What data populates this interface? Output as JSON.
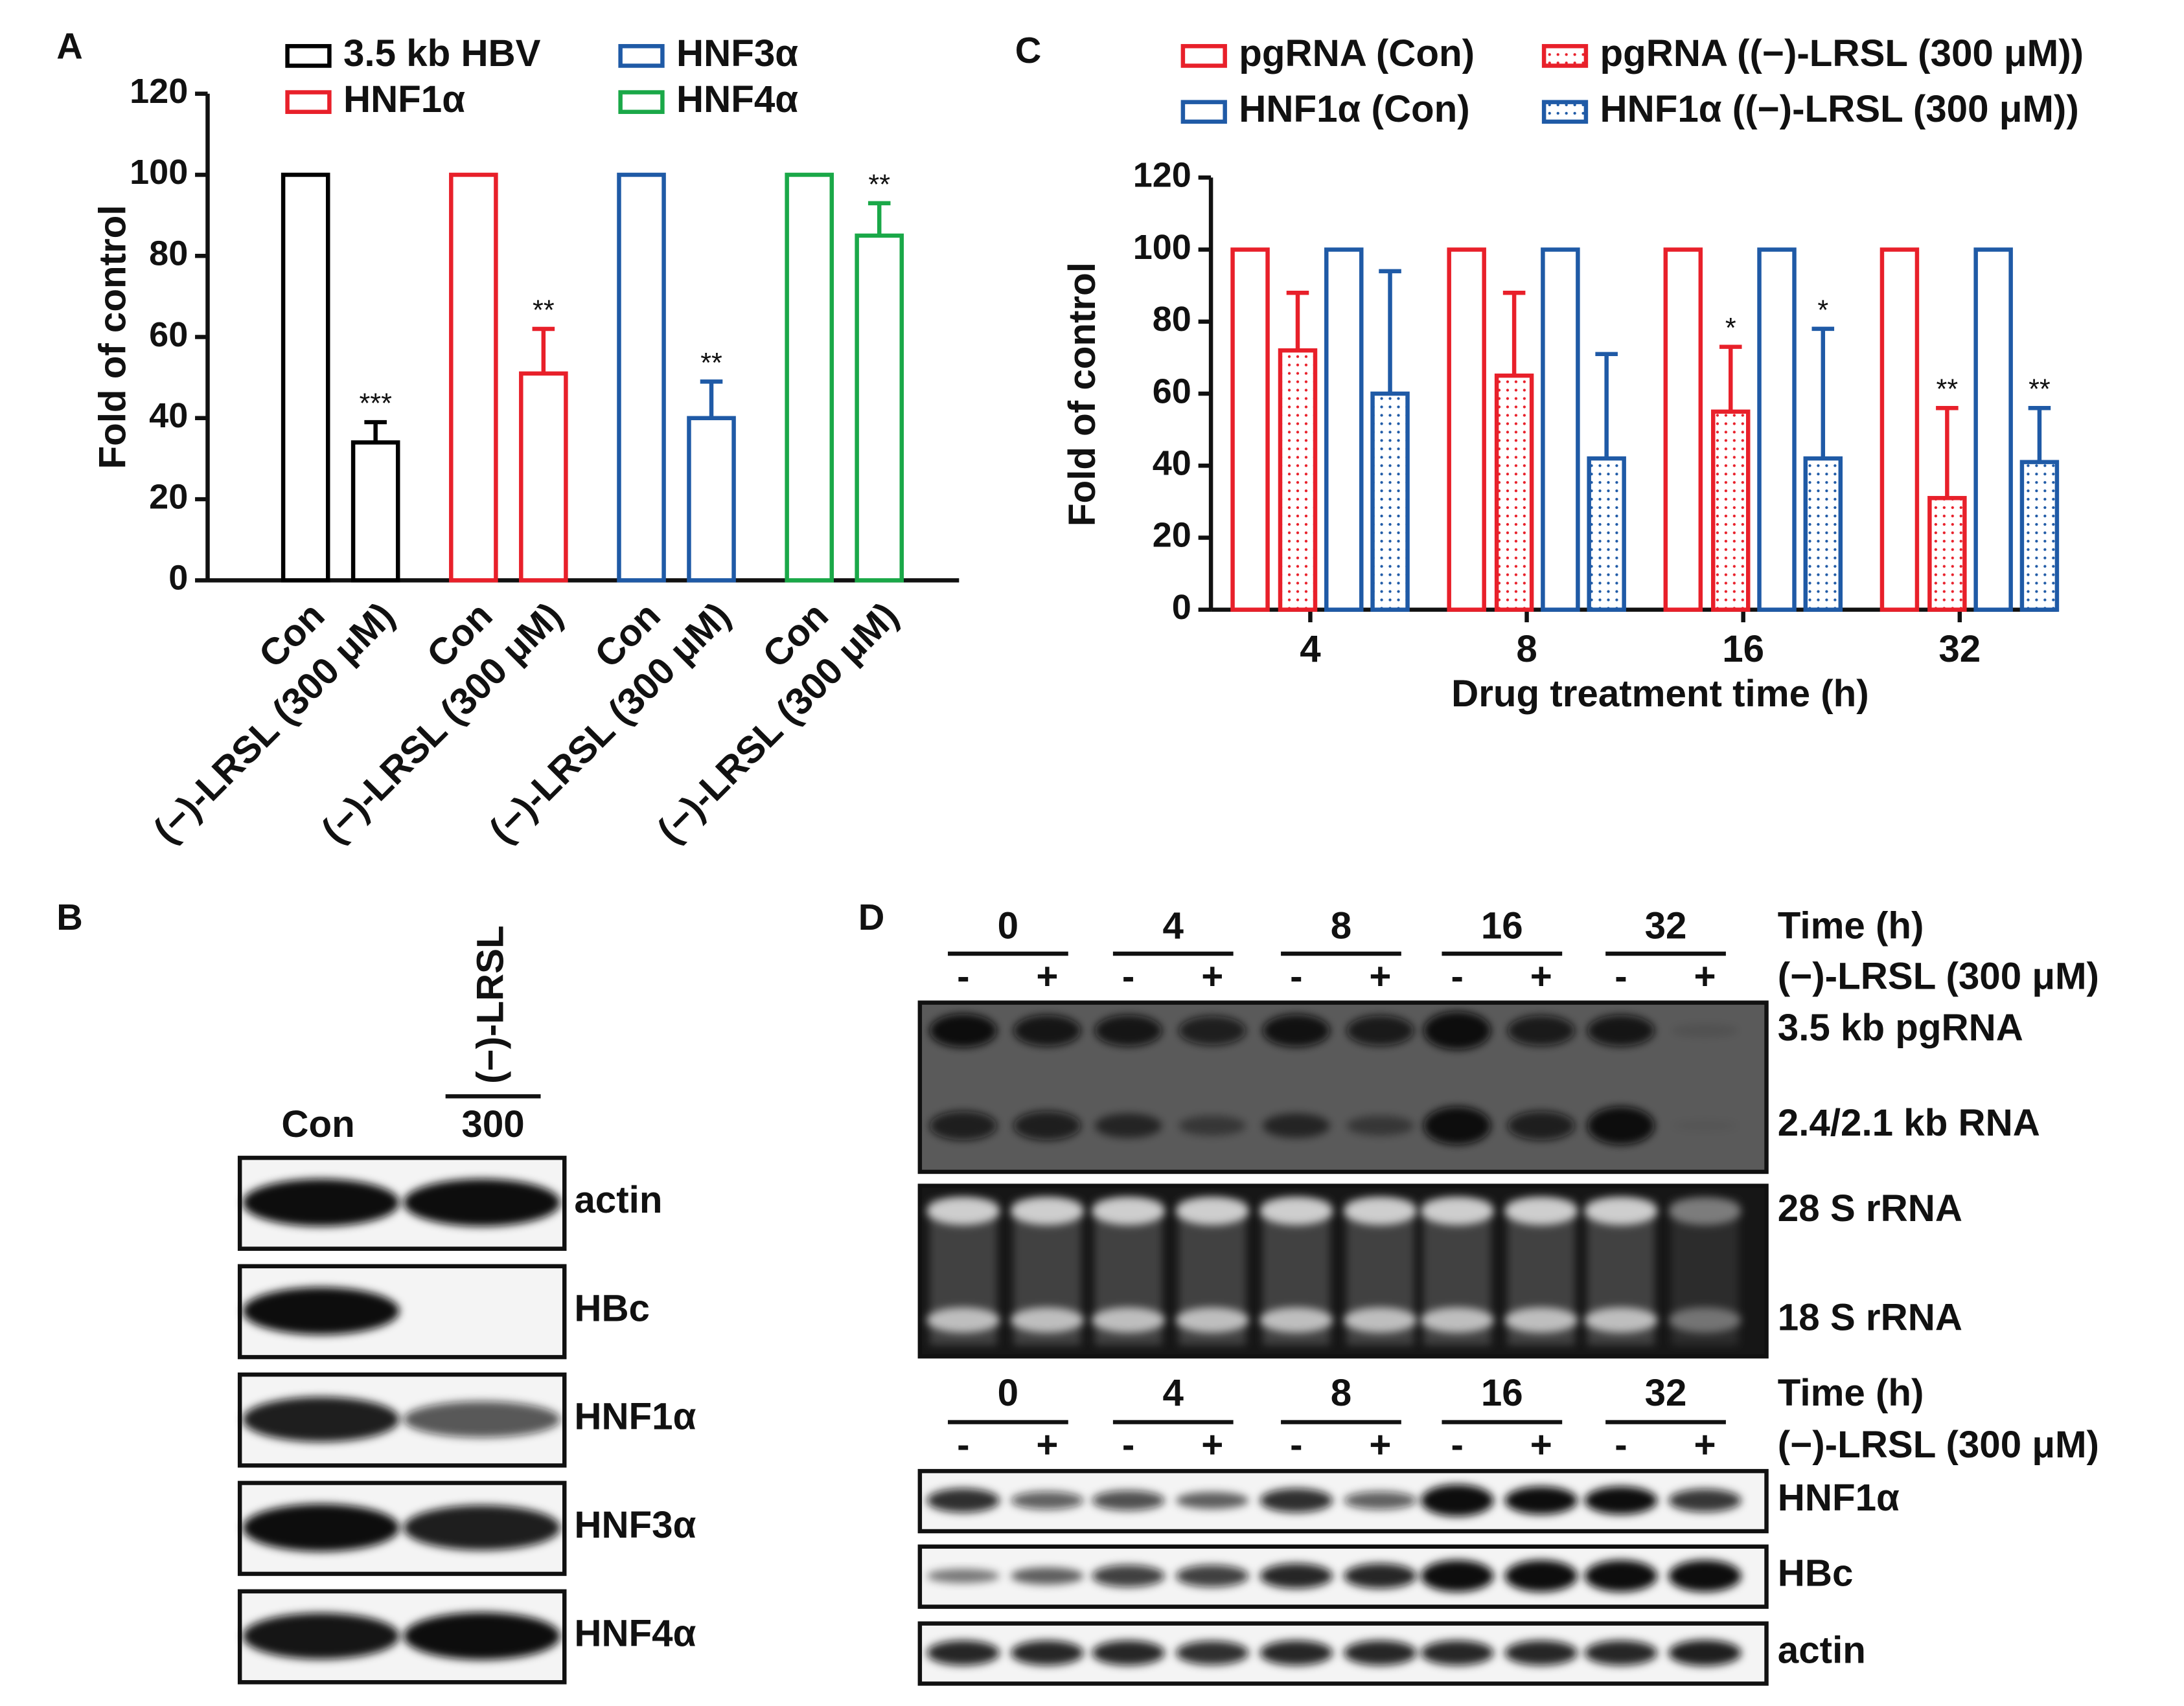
{
  "chart_data": [
    {
      "type": "bar",
      "panel": "A",
      "ylabel": "Fold of control",
      "categories": [
        "Con",
        "(−)-LRSL (300 μM)",
        "Con",
        "(−)-LRSL (300 μM)",
        "Con",
        "(−)-LRSL (300 μM)",
        "Con",
        "(−)-LRSL (300 μM)"
      ],
      "ylim": [
        0,
        120
      ],
      "yticks": [
        0,
        20,
        40,
        60,
        80,
        100,
        120
      ],
      "series": [
        {
          "name": "3.5 kb HBV",
          "color": "#000000",
          "values": [
            100,
            34,
            null,
            null,
            null,
            null,
            null,
            null
          ],
          "errors": [
            null,
            5,
            null,
            null,
            null,
            null,
            null,
            null
          ],
          "significance": [
            null,
            "***",
            null,
            null,
            null,
            null,
            null,
            null
          ]
        },
        {
          "name": "HNF1α",
          "color": "#e8202a",
          "values": [
            null,
            null,
            100,
            51,
            null,
            null,
            null,
            null
          ],
          "errors": [
            null,
            null,
            null,
            11,
            null,
            null,
            null,
            null
          ],
          "significance": [
            null,
            null,
            null,
            "**",
            null,
            null,
            null,
            null
          ]
        },
        {
          "name": "HNF3α",
          "color": "#1f5aa6",
          "values": [
            null,
            null,
            null,
            null,
            100,
            40,
            null,
            null
          ],
          "errors": [
            null,
            null,
            null,
            null,
            null,
            9,
            null,
            null
          ],
          "significance": [
            null,
            null,
            null,
            null,
            null,
            "**",
            null,
            null
          ]
        },
        {
          "name": "HNF4α",
          "color": "#1aa848",
          "values": [
            null,
            null,
            null,
            null,
            null,
            null,
            100,
            85
          ],
          "errors": [
            null,
            null,
            null,
            null,
            null,
            null,
            null,
            8
          ],
          "significance": [
            null,
            null,
            null,
            null,
            null,
            null,
            null,
            "**"
          ]
        }
      ]
    },
    {
      "type": "bar",
      "panel": "C",
      "ylabel": "Fold of control",
      "xlabel": "Drug treatment time (h)",
      "categories": [
        "4",
        "8",
        "16",
        "32"
      ],
      "ylim": [
        0,
        120
      ],
      "yticks": [
        0,
        20,
        40,
        60,
        80,
        100,
        120
      ],
      "series": [
        {
          "name": "pgRNA (Con)",
          "color": "#e8202a",
          "pattern": "solid",
          "values": [
            100,
            100,
            100,
            100
          ]
        },
        {
          "name": "pgRNA ((−)-LRSL (300 μM))",
          "color": "#e8202a",
          "pattern": "dotted",
          "values": [
            72,
            65,
            55,
            31
          ],
          "errors": [
            16,
            23,
            18,
            25
          ],
          "significance": [
            null,
            null,
            "*",
            "**"
          ]
        },
        {
          "name": "HNF1α (Con)",
          "color": "#1f5aa6",
          "pattern": "solid",
          "values": [
            100,
            100,
            100,
            100
          ]
        },
        {
          "name": "HNF1α ((−)-LRSL (300 μM))",
          "color": "#1f5aa6",
          "pattern": "dotted",
          "values": [
            60,
            42,
            42,
            41
          ],
          "errors": [
            34,
            29,
            36,
            15
          ],
          "significance": [
            null,
            null,
            "*",
            "**"
          ]
        }
      ]
    }
  ],
  "blots": {
    "B": {
      "panel": "B",
      "treatment": "(−)-LRSL",
      "lanes": [
        "Con",
        "300"
      ],
      "rows": [
        "actin",
        "HBc",
        "HNF1α",
        "HNF3α",
        "HNF4α"
      ]
    },
    "D": {
      "panel": "D",
      "times": [
        "0",
        "4",
        "8",
        "16",
        "32"
      ],
      "signs": [
        "-",
        "+"
      ],
      "time_label": "Time (h)",
      "treatment_label": "(−)-LRSL (300 μM)",
      "rna_rows": [
        "3.5 kb pgRNA",
        "2.4/2.1 kb RNA"
      ],
      "rrna_rows": [
        "28 S rRNA",
        "18 S rRNA"
      ],
      "protein_rows": [
        "HNF1α",
        "HBc",
        "actin"
      ]
    }
  }
}
